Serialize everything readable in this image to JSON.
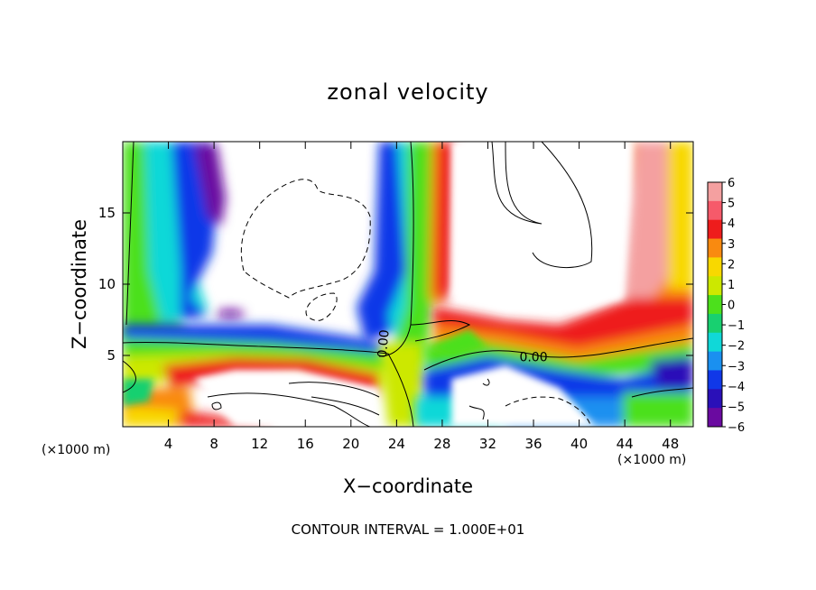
{
  "chart_data": {
    "type": "heatmap",
    "title": "zonal velocity",
    "xlabel": "X−coordinate",
    "ylabel": "Z−coordinate",
    "x_unit_left": "(×1000 m)",
    "x_unit_right": "(×1000 m)",
    "xlim": [
      0,
      50
    ],
    "ylim": [
      0,
      20
    ],
    "x_ticks": [
      4,
      8,
      12,
      16,
      20,
      24,
      28,
      32,
      36,
      40,
      44,
      48
    ],
    "y_ticks": [
      5,
      10,
      15
    ],
    "colorbar": {
      "ticks": [
        6,
        5,
        4,
        3,
        2,
        1,
        0,
        -1,
        -2,
        -3,
        -4,
        -5,
        -6
      ],
      "labels": [
        "6",
        "5",
        "4",
        "3",
        "2",
        "1",
        "0",
        "−1",
        "−2",
        "−3",
        "−4",
        "−5",
        "−6"
      ],
      "colors": [
        "#f4a0a0",
        "#f65a6a",
        "#ee1c1c",
        "#f98a10",
        "#f8d800",
        "#cce800",
        "#4ce01c",
        "#18d070",
        "#10d8d8",
        "#1a90f0",
        "#1038e8",
        "#2a10b8",
        "#6a0aa0"
      ],
      "vmin": -6,
      "vmax": 6
    },
    "contour_labels": [
      {
        "text": "0.00",
        "x": 23.2,
        "y": 5.8,
        "rotate": -85
      },
      {
        "text": "0.00",
        "x": 36.0,
        "y": 4.6,
        "rotate": 0
      }
    ],
    "footer": "CONTOUR INTERVAL = 1.000E+01",
    "grid": false,
    "legend": "right"
  }
}
